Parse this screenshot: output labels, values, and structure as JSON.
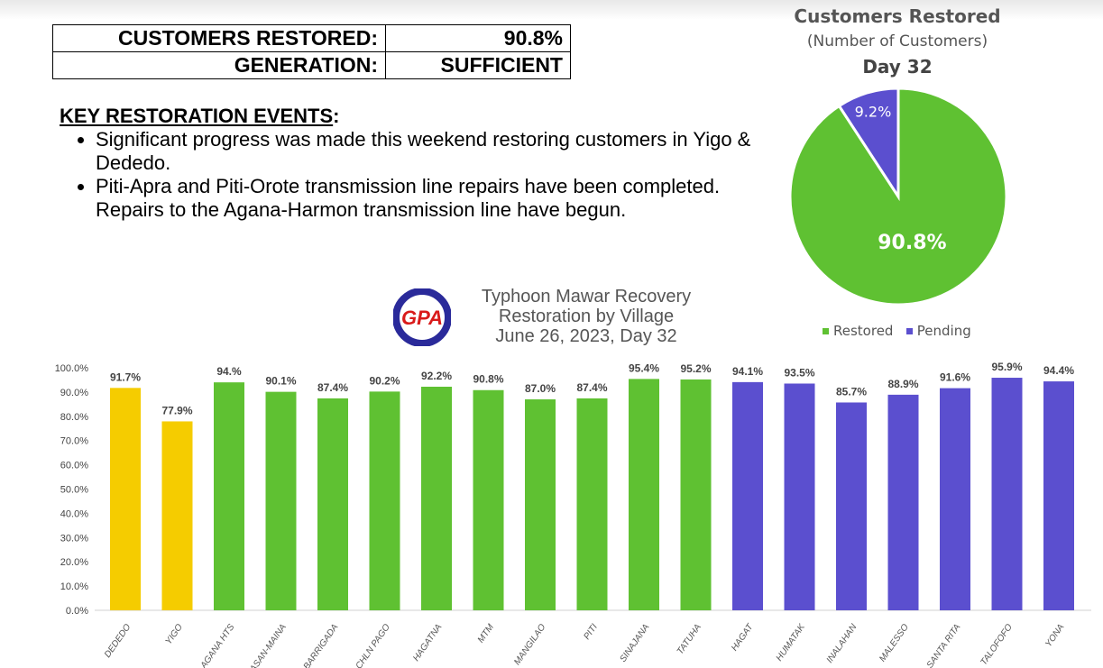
{
  "status_table": [
    {
      "label": "CUSTOMERS RESTORED:",
      "value": "90.8%"
    },
    {
      "label": "GENERATION:",
      "value": "SUFFICIENT"
    }
  ],
  "events": {
    "heading": "KEY RESTORATION EVENTS",
    "heading_suffix": ":",
    "items": [
      "Significant progress was made this weekend restoring customers in Yigo & Dededo.",
      "Piti-Apra and Piti-Orote transmission line repairs have been completed. Repairs to the Agana-Harmon transmission line have begun."
    ]
  },
  "logo_text": "GPA",
  "colors": {
    "restored": "#5fc132",
    "pending": "#5b4fcf",
    "yellow": "#f5cc00",
    "green": "#5fc132",
    "purple": "#5b4fcf"
  },
  "chart_data": [
    {
      "type": "pie",
      "title": "Customers Restored",
      "subtitle": "(Number of Customers)",
      "subtitle2": "Day 32",
      "slices": [
        {
          "name": "Restored",
          "value": 90.8,
          "label": "90.8%"
        },
        {
          "name": "Pending",
          "value": 9.2,
          "label": "9.2%"
        }
      ],
      "legend": "bottom"
    },
    {
      "type": "bar",
      "title": [
        "Typhoon Mawar Recovery",
        "Restoration by Village",
        "June 26, 2023, Day 32"
      ],
      "categories": [
        "DEDEDO",
        "YIGO",
        "AGANA HTS",
        "ASAN-MAINA",
        "BARRIGADA",
        "CHLN PAGO",
        "HAGATNA",
        "MTM",
        "MANGILAO",
        "PITI",
        "SINAJANA",
        "TATUHA",
        "HAGAT",
        "HUMATAK",
        "INALAHAN",
        "MALESSO",
        "SANTA RITA",
        "TALOFOFO",
        "YONA"
      ],
      "values": [
        91.7,
        77.9,
        94.0,
        90.1,
        87.4,
        90.2,
        92.2,
        90.8,
        87.0,
        87.4,
        95.4,
        95.2,
        94.1,
        93.5,
        85.7,
        88.9,
        91.6,
        95.9,
        94.4
      ],
      "labels": [
        "91.7%",
        "77.9%",
        "94.%",
        "90.1%",
        "87.4%",
        "90.2%",
        "92.2%",
        "90.8%",
        "87.0%",
        "87.4%",
        "95.4%",
        "95.2%",
        "94.1%",
        "93.5%",
        "85.7%",
        "88.9%",
        "91.6%",
        "95.9%",
        "94.4%"
      ],
      "bar_colors": [
        "yellow",
        "yellow",
        "green",
        "green",
        "green",
        "green",
        "green",
        "green",
        "green",
        "green",
        "green",
        "green",
        "purple",
        "purple",
        "purple",
        "purple",
        "purple",
        "purple",
        "purple"
      ],
      "yticks": [
        "0.0%",
        "10.0%",
        "20.0%",
        "30.0%",
        "40.0%",
        "50.0%",
        "60.0%",
        "70.0%",
        "80.0%",
        "90.0%",
        "100.0%"
      ],
      "ylim": [
        0,
        100
      ],
      "grid": false
    }
  ]
}
